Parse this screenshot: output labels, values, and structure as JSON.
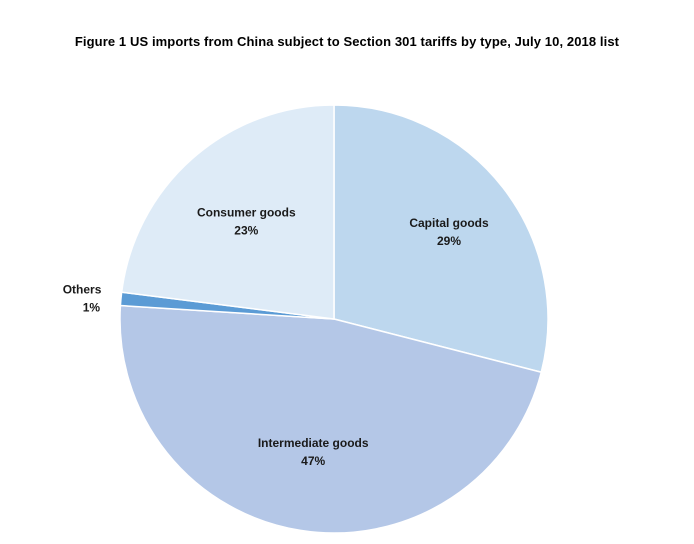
{
  "chart_data": {
    "type": "pie",
    "title": "Figure 1 US imports from China subject to Section 301 tariffs by type, July 10, 2018 list",
    "slices": [
      {
        "name": "Capital goods",
        "value": 29,
        "value_label": "29%",
        "color": "#bdd7ee"
      },
      {
        "name": "Intermediate goods",
        "value": 47,
        "value_label": "47%",
        "color": "#b4c7e7"
      },
      {
        "name": "Others",
        "value": 1,
        "value_label": "1%",
        "color": "#5b9bd5"
      },
      {
        "name": "Consumer goods",
        "value": 23,
        "value_label": "23%",
        "color": "#deebf7"
      }
    ],
    "start_angle_deg": 0,
    "direction": "clockwise",
    "slice_border_color": "#ffffff"
  }
}
